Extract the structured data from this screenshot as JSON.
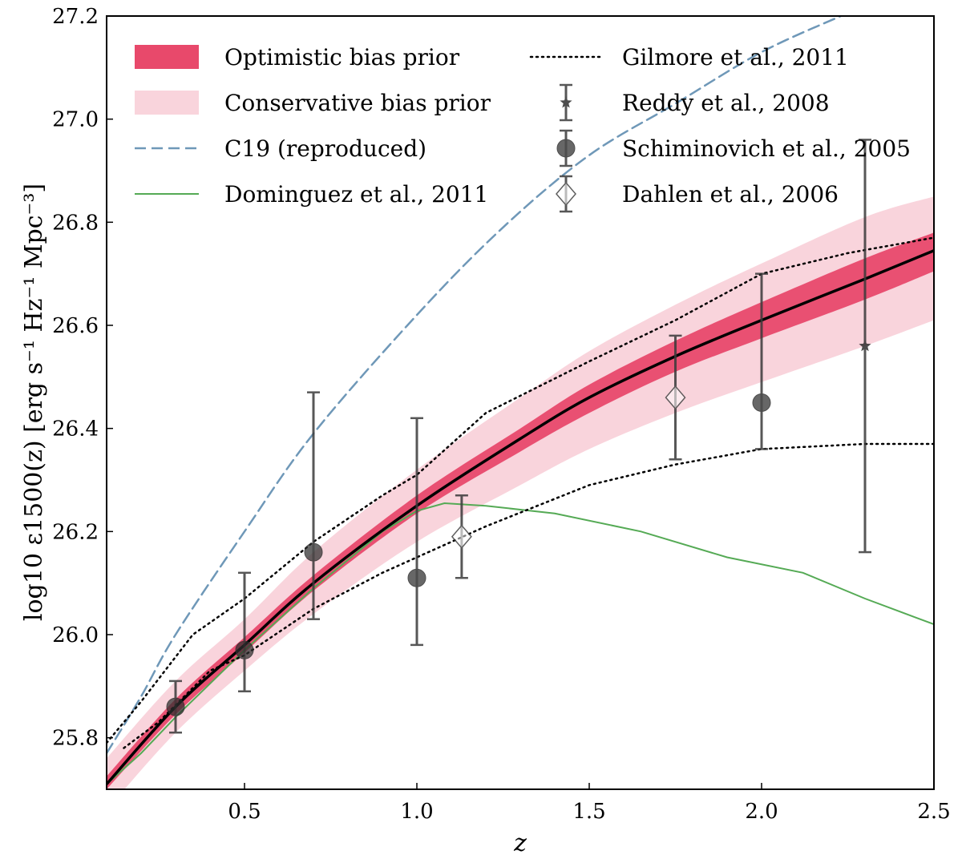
{
  "chart_data": {
    "type": "line",
    "title": "",
    "xlabel": "z",
    "ylabel": "log10 ε1500(z) [erg s⁻¹ Hz⁻¹ Mpc⁻³]",
    "xlim": [
      0.1,
      2.5
    ],
    "ylim": [
      25.7,
      27.2
    ],
    "xticks": [
      0.5,
      1.0,
      1.5,
      2.0,
      2.5
    ],
    "xtick_labels": [
      "0.5",
      "1.0",
      "1.5",
      "2.0",
      "2.5"
    ],
    "yticks": [
      25.8,
      26.0,
      26.2,
      26.4,
      26.6,
      26.8,
      27.0,
      27.2
    ],
    "ytick_labels": [
      "25.8",
      "26.0",
      "26.2",
      "26.4",
      "26.6",
      "26.8",
      "27.0",
      "27.2"
    ],
    "grid": false,
    "legend_position": "top-left",
    "colors": {
      "optimistic_band": "#e8496b",
      "conservative_band": "#f4a9b9",
      "c19": "#6f98b8",
      "dominguez": "#55aa55",
      "gilmore": "#000000",
      "best_fit": "#000000",
      "markers": "#3a3a3a"
    },
    "legend": [
      {
        "label": "Optimistic bias prior",
        "style": "band-dark"
      },
      {
        "label": "Conservative bias prior",
        "style": "band-light"
      },
      {
        "label": "C19 (reproduced)",
        "style": "dashed"
      },
      {
        "label": "Dominguez et al., 2011",
        "style": "green-line"
      },
      {
        "label": "Gilmore et al., 2011",
        "style": "dotted"
      },
      {
        "label": "Reddy et al., 2008",
        "style": "star"
      },
      {
        "label": "Schiminovich et al., 2005",
        "style": "circle"
      },
      {
        "label": "Dahlen et al., 2006",
        "style": "diamond"
      }
    ],
    "best_fit": {
      "name": "Best fit",
      "x": [
        0.1,
        0.3,
        0.5,
        0.7,
        1.0,
        1.3,
        1.5,
        1.75,
        2.0,
        2.3,
        2.5
      ],
      "y": [
        25.71,
        25.86,
        25.98,
        26.1,
        26.25,
        26.38,
        26.46,
        26.54,
        26.61,
        26.69,
        26.745
      ]
    },
    "optimistic_band": {
      "x": [
        0.1,
        0.3,
        0.5,
        0.7,
        1.0,
        1.3,
        1.5,
        1.75,
        2.0,
        2.3,
        2.5
      ],
      "lower": [
        25.7,
        25.845,
        25.965,
        26.085,
        26.235,
        26.355,
        26.43,
        26.51,
        26.575,
        26.65,
        26.705
      ],
      "upper": [
        25.725,
        25.875,
        25.995,
        26.115,
        26.27,
        26.4,
        26.485,
        26.57,
        26.645,
        26.73,
        26.78
      ]
    },
    "conservative_band": {
      "x": [
        0.1,
        0.3,
        0.5,
        0.7,
        1.0,
        1.3,
        1.5,
        1.75,
        2.0,
        2.3,
        2.5
      ],
      "lower": [
        25.66,
        25.81,
        25.93,
        26.04,
        26.18,
        26.29,
        26.36,
        26.43,
        26.49,
        26.56,
        26.61
      ],
      "upper": [
        25.76,
        25.91,
        26.03,
        26.16,
        26.32,
        26.46,
        26.55,
        26.64,
        26.72,
        26.81,
        26.85
      ]
    },
    "series": [
      {
        "name": "C19 (reproduced)",
        "x": [
          0.1,
          0.2,
          0.3,
          0.5,
          0.7,
          1.0,
          1.25,
          1.5,
          1.75,
          2.0,
          2.23
        ],
        "y": [
          25.77,
          25.88,
          26.0,
          26.2,
          26.39,
          26.62,
          26.79,
          26.93,
          27.03,
          27.13,
          27.2
        ]
      },
      {
        "name": "Dominguez et al., 2011",
        "x": [
          0.1,
          0.2,
          0.3,
          0.5,
          0.7,
          0.9,
          1.0,
          1.08,
          1.2,
          1.4,
          1.65,
          1.9,
          2.12,
          2.3,
          2.5
        ],
        "y": [
          25.71,
          25.77,
          25.84,
          25.97,
          26.09,
          26.2,
          26.24,
          26.255,
          26.25,
          26.235,
          26.2,
          26.15,
          26.12,
          26.07,
          26.02
        ]
      },
      {
        "name": "Gilmore et al., 2011 (upper)",
        "x": [
          0.1,
          0.2,
          0.35,
          0.5,
          0.7,
          0.9,
          1.0,
          1.2,
          1.5,
          1.75,
          2.0,
          2.25,
          2.5
        ],
        "y": [
          25.79,
          25.87,
          26.0,
          26.07,
          26.18,
          26.27,
          26.31,
          26.43,
          26.53,
          26.61,
          26.7,
          26.74,
          26.77
        ]
      },
      {
        "name": "Gilmore et al., 2011 (lower)",
        "x": [
          0.15,
          0.25,
          0.4,
          0.5,
          0.7,
          0.9,
          1.2,
          1.5,
          1.75,
          2.0,
          2.3,
          2.5
        ],
        "y": [
          25.78,
          25.83,
          25.93,
          25.96,
          26.05,
          26.12,
          26.21,
          26.29,
          26.33,
          26.36,
          26.37,
          26.37
        ]
      }
    ],
    "points": [
      {
        "name": "Schiminovich et al., 2005",
        "marker": "circle",
        "x": 0.3,
        "y": 25.86,
        "ylo": 25.81,
        "yhi": 25.91
      },
      {
        "name": "Schiminovich et al., 2005",
        "marker": "circle",
        "x": 0.5,
        "y": 25.97,
        "ylo": 25.89,
        "yhi": 26.12
      },
      {
        "name": "Schiminovich et al., 2005",
        "marker": "circle",
        "x": 0.7,
        "y": 26.16,
        "ylo": 26.03,
        "yhi": 26.47
      },
      {
        "name": "Schiminovich et al., 2005",
        "marker": "circle",
        "x": 1.0,
        "y": 26.11,
        "ylo": 25.98,
        "yhi": 26.42
      },
      {
        "name": "Schiminovich et al., 2005",
        "marker": "circle",
        "x": 2.0,
        "y": 26.45,
        "ylo": 26.36,
        "yhi": 26.7
      },
      {
        "name": "Dahlen et al., 2006",
        "marker": "diamond",
        "x": 1.13,
        "y": 26.19,
        "ylo": 26.11,
        "yhi": 26.27
      },
      {
        "name": "Dahlen et al., 2006",
        "marker": "diamond",
        "x": 1.75,
        "y": 26.46,
        "ylo": 26.34,
        "yhi": 26.58
      },
      {
        "name": "Reddy et al., 2008",
        "marker": "star",
        "x": 2.3,
        "y": 26.56,
        "ylo": 26.16,
        "yhi": 26.96
      }
    ]
  }
}
